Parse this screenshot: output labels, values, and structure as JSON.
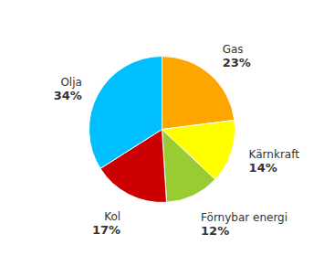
{
  "chart_data": {
    "type": "pie",
    "categories": [
      "Gas",
      "Kärnkraft",
      "Förnybar energi",
      "Kol",
      "Olja"
    ],
    "values": [
      23,
      14,
      12,
      17,
      34
    ],
    "value_labels": [
      "23%",
      "14%",
      "12%",
      "17%",
      "34%"
    ],
    "colors": [
      "#FFA500",
      "#FFFF00",
      "#99CC33",
      "#CC0000",
      "#00BFFF"
    ],
    "data_labels": true
  }
}
